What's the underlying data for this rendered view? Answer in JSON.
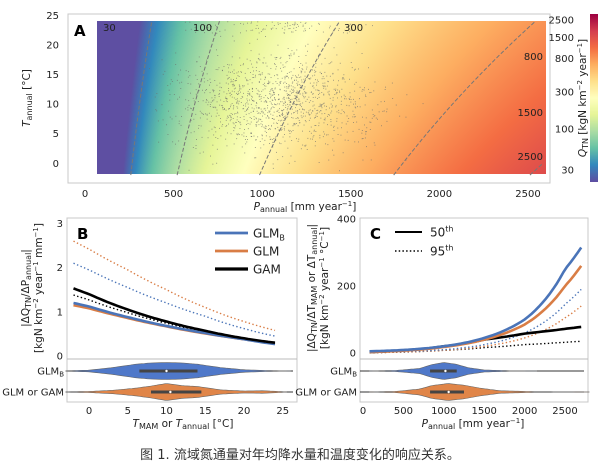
{
  "colors": {
    "glmb": "#4a74b8",
    "glm": "#d97d45",
    "gam": "#000000",
    "violin_glmb": "#4f78c9",
    "violin_glm": "#e08548",
    "frame": "#c8c8c8",
    "scatter": "#6d6d6d",
    "contour": "#777777"
  },
  "colormap": [
    "#5e4fa2",
    "#3288bd",
    "#66c2a5",
    "#abdda4",
    "#e6f598",
    "#ffffbf",
    "#fee08b",
    "#fdae61",
    "#f46d43",
    "#d53e4f",
    "#9e0142"
  ],
  "caption": "图 1. 流域氮通量对年均降水量和温度变化的响应关系。",
  "chart_data": [
    {
      "panel": "A",
      "type": "heatmap",
      "xlabel": {
        "main": "P",
        "sub": "annual",
        "unit": " [mm year",
        "sup": "−1",
        "end": "]"
      },
      "ylabel": {
        "main": "T",
        "sub": "annual",
        "unit": " [°C]"
      },
      "xlim": [
        -250,
        2830
      ],
      "ylim": [
        -3,
        25
      ],
      "xticks": [
        "0",
        "500",
        "1000",
        "1500",
        "2000",
        "2500"
      ],
      "xtick_values": [
        0,
        500,
        1000,
        1500,
        2000,
        2500
      ],
      "yticks": [
        "0",
        "5",
        "10",
        "15",
        "20",
        "25"
      ],
      "ytick_values": [
        0,
        5,
        10,
        15,
        20,
        25
      ],
      "heat_x_range": [
        68,
        2600
      ],
      "heat_y_range": [
        -2,
        24
      ],
      "model": {
        "ref_P": 520,
        "ref_T": -2,
        "ref_Q": 100,
        "p_exponent": 1.72,
        "t_coef": 0.025
      },
      "colorbar": {
        "label_main": "Q",
        "label_sub": "TN",
        "label_unit": " [kgN km",
        "sup1": "−2",
        "mid": " year",
        "sup2": "−1",
        "end": "]",
        "ticks": [
          "30",
          "100",
          "300",
          "800",
          "1500",
          "2500"
        ],
        "tick_values": [
          30,
          100,
          300,
          800,
          1500,
          2500
        ],
        "range": [
          21,
          2985
        ],
        "scale": "log"
      },
      "contours": [
        {
          "level": 30,
          "label": "30"
        },
        {
          "level": 100,
          "label": "100"
        },
        {
          "level": 300,
          "label": "300"
        },
        {
          "level": 800,
          "label": "800"
        },
        {
          "level": 1500,
          "label": "1500"
        },
        {
          "level": 2500,
          "label": "2500"
        }
      ],
      "scatter": {
        "count": 1400,
        "center_P": 1080,
        "center_T": 10.5
      }
    },
    {
      "panel": "B",
      "type": "line",
      "xlabel": {
        "a": "T",
        "asub": "MAM",
        "mid": " or ",
        "b": "T",
        "bsub": "annual",
        "unit": " [°C]"
      },
      "ylabel": {
        "line1a": "|ΔQ",
        "line1sub": "TN",
        "line1b": "/ΔP",
        "line1sub2": "annual",
        "line1c": "|",
        "line2a": "[kgN km",
        "sup1": "−2",
        "line2b": " year",
        "sup2": "−1",
        "line2c": " mm",
        "sup3": "−1",
        "line2d": "]"
      },
      "xlim": [
        -3.5,
        26.5
      ],
      "ylim": [
        -0.1,
        3.1
      ],
      "xticks": [
        "0",
        "5",
        "10",
        "15",
        "20",
        "25"
      ],
      "xtick_values": [
        0,
        5,
        10,
        15,
        20,
        25
      ],
      "yticks": [
        "0",
        "1",
        "2",
        "3"
      ],
      "ytick_values": [
        0,
        1,
        2,
        3
      ],
      "x": [
        -2,
        0,
        5,
        10,
        15,
        20,
        24
      ],
      "series": [
        {
          "name": "GLMB 95th",
          "model": "glmb",
          "style": "dotted",
          "values": [
            2.1,
            1.95,
            1.55,
            1.2,
            0.9,
            0.62,
            0.45
          ]
        },
        {
          "name": "GLM 95th",
          "model": "glm",
          "style": "dotted",
          "values": [
            2.6,
            2.42,
            1.95,
            1.5,
            1.1,
            0.78,
            0.58
          ]
        },
        {
          "name": "GAM 95th",
          "model": "gam",
          "style": "dotted",
          "values": [
            1.38,
            1.27,
            0.98,
            0.74,
            0.55,
            0.4,
            0.3
          ]
        },
        {
          "name": "GLM 50th",
          "model": "glm",
          "style": "solid",
          "values": [
            1.15,
            1.08,
            0.86,
            0.67,
            0.51,
            0.38,
            0.28
          ]
        },
        {
          "name": "GLMB 50th",
          "model": "glmb",
          "style": "solid",
          "values": [
            1.2,
            1.12,
            0.88,
            0.68,
            0.52,
            0.38,
            0.27
          ]
        },
        {
          "name": "GAM 50th",
          "model": "gam",
          "style": "solid",
          "values": [
            1.53,
            1.4,
            1.05,
            0.78,
            0.57,
            0.4,
            0.3
          ]
        }
      ],
      "legend": [
        {
          "label": "GLM",
          "sub": "B",
          "model": "glmb"
        },
        {
          "label": "GLM",
          "sub": "",
          "model": "glm"
        },
        {
          "label": "GAM",
          "sub": "",
          "model": "gam"
        }
      ],
      "legend_position": "top-right",
      "violins": [
        {
          "label": "GLM",
          "sub": "B",
          "model": "violin_glmb",
          "min": -3,
          "q1": 6.5,
          "median": 10,
          "q3": 14,
          "max": 26,
          "x": [
            -3,
            0,
            3,
            6,
            8,
            10,
            12,
            14,
            17,
            20,
            23,
            26
          ],
          "density": [
            0.02,
            0.1,
            0.4,
            0.8,
            0.95,
            1.0,
            0.95,
            0.8,
            0.4,
            0.15,
            0.05,
            0.01
          ]
        },
        {
          "label": "GLM or GAM",
          "sub": "",
          "model": "violin_glm",
          "min": -3,
          "q1": 8,
          "median": 10.5,
          "q3": 14.5,
          "max": 25.5,
          "x": [
            -3,
            0,
            3,
            6,
            8,
            10,
            12,
            14,
            17,
            20,
            22.5,
            25.5
          ],
          "density": [
            0.02,
            0.06,
            0.2,
            0.45,
            0.7,
            1.0,
            0.75,
            0.65,
            0.25,
            0.12,
            0.15,
            0.01
          ]
        }
      ]
    },
    {
      "panel": "C",
      "type": "line",
      "xlabel": {
        "main": "P",
        "sub": "annual",
        "unit": " [mm year",
        "sup": "−1",
        "end": "]"
      },
      "ylabel": {
        "line1a": "|ΔQ",
        "line1sub": "TN",
        "line1b": "/ΔT",
        "line1sub2": "MAM",
        "line1c": " or ΔT",
        "line1sub3": "annual",
        "line1d": "|",
        "line2a": "[kgN km",
        "sup1": "−2",
        "line2b": " year",
        "sup2": "−1",
        "line2c": " °C",
        "sup3": "−1",
        "line2d": "]"
      },
      "xlim": [
        -120,
        2820
      ],
      "ylim": [
        -30,
        410
      ],
      "xticks": [
        "0",
        "500",
        "1000",
        "1500",
        "2000",
        "2500"
      ],
      "xtick_values": [
        0,
        500,
        1000,
        1500,
        2000,
        2500
      ],
      "yticks": [
        "0",
        "200",
        "400"
      ],
      "ytick_values": [
        0,
        200,
        400
      ],
      "x": [
        80,
        500,
        1000,
        1500,
        2000,
        2500,
        2700
      ],
      "series": [
        {
          "name": "GAM 95th",
          "model": "gam",
          "style": "dotted",
          "values": [
            1,
            3,
            8,
            16,
            25,
            32,
            35
          ]
        },
        {
          "name": "GLM 95th",
          "model": "glm",
          "style": "dotted",
          "values": [
            1,
            3,
            8,
            20,
            45,
            105,
            140
          ]
        },
        {
          "name": "GLMB 95th",
          "model": "glmb",
          "style": "dotted",
          "values": [
            2,
            4,
            10,
            25,
            60,
            145,
            190
          ]
        },
        {
          "name": "GAM 50th",
          "model": "gam",
          "style": "solid",
          "values": [
            3,
            8,
            20,
            40,
            58,
            72,
            78
          ]
        },
        {
          "name": "GLM 50th",
          "model": "glm",
          "style": "solid",
          "values": [
            3,
            7,
            18,
            40,
            85,
            200,
            260
          ]
        },
        {
          "name": "GLMB 50th",
          "model": "glmb",
          "style": "solid",
          "values": [
            5,
            9,
            20,
            45,
            100,
            250,
            315
          ]
        }
      ],
      "legend": [
        {
          "label": "50",
          "sup": "th",
          "style": "solid"
        },
        {
          "label": "95",
          "sup": "th",
          "style": "dotted"
        }
      ],
      "legend_position": "top-left",
      "violins": [
        {
          "label": "GLM",
          "sub": "B",
          "model": "violin_glmb",
          "min": 80,
          "q1": 830,
          "median": 1020,
          "q3": 1160,
          "max": 2150,
          "x": [
            80,
            400,
            700,
            850,
            1000,
            1150,
            1300,
            1500,
            1800,
            2150
          ],
          "density": [
            0.01,
            0.06,
            0.3,
            0.75,
            1.0,
            0.8,
            0.4,
            0.12,
            0.03,
            0.01
          ]
        },
        {
          "label": "GLM or GAM",
          "sub": "",
          "model": "violin_glm",
          "min": 80,
          "q1": 830,
          "median": 1060,
          "q3": 1250,
          "max": 2800,
          "x": [
            80,
            400,
            700,
            850,
            1050,
            1250,
            1450,
            1700,
            2100,
            2800
          ],
          "density": [
            0.01,
            0.06,
            0.35,
            0.75,
            1.0,
            0.8,
            0.45,
            0.15,
            0.04,
            0.01
          ]
        }
      ]
    }
  ]
}
